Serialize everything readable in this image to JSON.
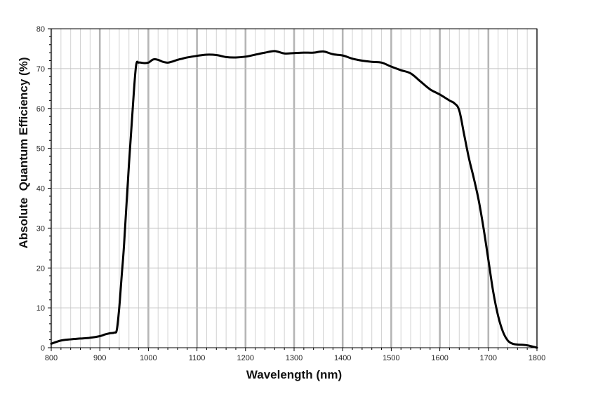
{
  "chart_data": {
    "type": "line",
    "title": "",
    "xlabel": "Wavelength (nm)",
    "ylabel": "Absolute  Quantum Efficiency (%)",
    "xlim": [
      800,
      1800
    ],
    "ylim": [
      0,
      80
    ],
    "grid": true,
    "legend": "none",
    "x_ticks": [
      "800",
      "900",
      "1000",
      "1100",
      "1200",
      "1300",
      "1400",
      "1500",
      "1600",
      "1700",
      "1800"
    ],
    "y_ticks": [
      "0",
      "10",
      "20",
      "30",
      "40",
      "50",
      "60",
      "70",
      "80"
    ],
    "series": [
      {
        "color": "#000000",
        "x": [
          800,
          820,
          840,
          860,
          880,
          900,
          910,
          920,
          930,
          935,
          940,
          945,
          950,
          960,
          970,
          975,
          980,
          985,
          990,
          1000,
          1010,
          1020,
          1030,
          1040,
          1050,
          1060,
          1070,
          1080,
          1100,
          1120,
          1140,
          1160,
          1180,
          1200,
          1220,
          1240,
          1260,
          1280,
          1300,
          1320,
          1340,
          1360,
          1380,
          1400,
          1420,
          1440,
          1460,
          1480,
          1500,
          1520,
          1540,
          1560,
          1580,
          1600,
          1620,
          1630,
          1640,
          1650,
          1660,
          1670,
          1680,
          1690,
          1700,
          1710,
          1720,
          1730,
          1740,
          1750,
          1760,
          1780,
          1800
        ],
        "y": [
          1.0,
          1.8,
          2.1,
          2.3,
          2.5,
          2.9,
          3.3,
          3.6,
          3.8,
          4.5,
          10,
          18,
          26,
          46,
          64,
          71,
          71.5,
          71.5,
          71.4,
          71.5,
          72.3,
          72.2,
          71.7,
          71.5,
          71.8,
          72.2,
          72.5,
          72.8,
          73.2,
          73.5,
          73.4,
          72.9,
          72.8,
          73.0,
          73.5,
          74.0,
          74.4,
          73.8,
          73.9,
          74.0,
          74.0,
          74.3,
          73.6,
          73.3,
          72.5,
          72.0,
          71.7,
          71.5,
          70.5,
          69.6,
          68.8,
          66.8,
          64.8,
          63.5,
          62.0,
          61.3,
          59.5,
          53.5,
          47.5,
          42.5,
          37.0,
          30.0,
          22.0,
          14.0,
          8.0,
          4.0,
          1.8,
          1.0,
          0.8,
          0.6,
          0.0
        ]
      }
    ]
  }
}
